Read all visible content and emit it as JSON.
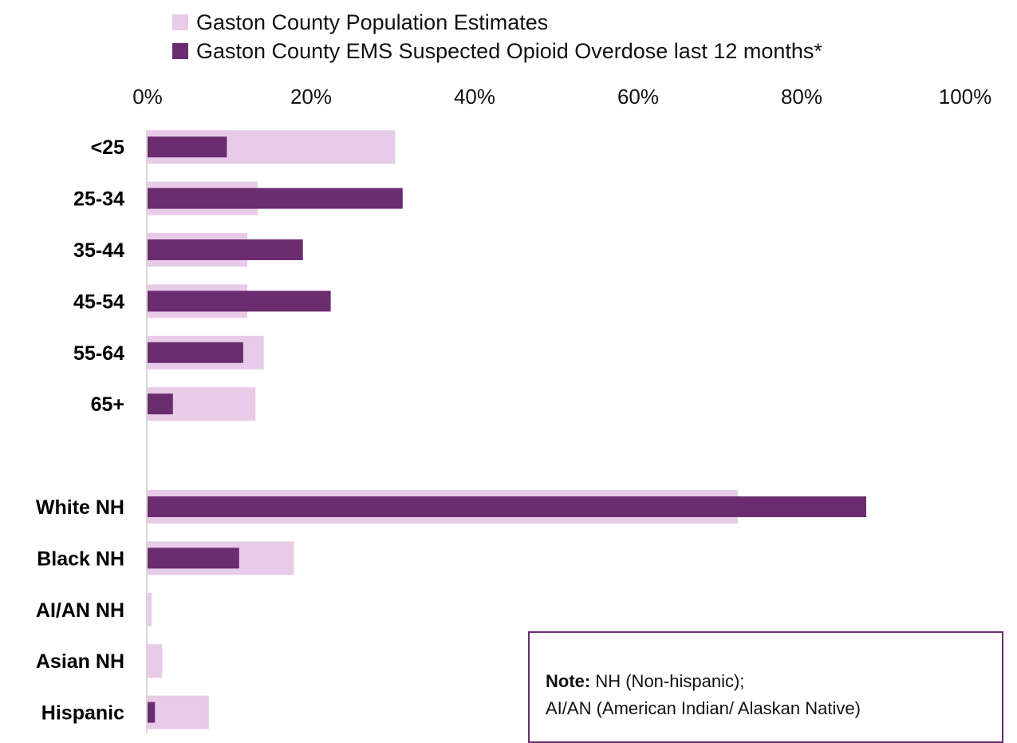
{
  "colors": {
    "population": "#e7cbe8",
    "overdose": "#6b2c70",
    "axis_line": "#d9d9d9",
    "note_border": "#6b2c70"
  },
  "legend": [
    {
      "name": "Gaston County Population Estimates",
      "color": "#e7cbe8"
    },
    {
      "name": "Gaston County EMS Suspected Opioid Overdose last 12 months*",
      "color": "#6b2c70"
    }
  ],
  "note": {
    "label": "Note:",
    "line1": "NH (Non-hispanic);",
    "line2": "AI/AN (American Indian/ Alaskan Native)"
  },
  "chart_data": {
    "type": "bar",
    "orientation": "horizontal",
    "xlim": [
      0,
      100
    ],
    "x_ticks": [
      "0%",
      "20%",
      "40%",
      "60%",
      "80%",
      "100%"
    ],
    "x_tick_values": [
      0,
      20,
      40,
      60,
      80,
      100
    ],
    "legend_placement": "top",
    "grid": false,
    "categories": [
      "<25",
      "25-34",
      "35-44",
      "45-54",
      "55-64",
      "65+",
      "",
      "White NH",
      "Black NH",
      "AI/AN NH",
      "Asian NH",
      "Hispanic"
    ],
    "series": [
      {
        "name": "Gaston County Population Estimates",
        "values": [
          30.3,
          13.5,
          12.2,
          12.2,
          14.2,
          13.2,
          null,
          72.2,
          17.9,
          0.5,
          1.8,
          7.5
        ]
      },
      {
        "name": "Gaston County EMS Suspected Opioid Overdose last 12 months*",
        "values": [
          9.7,
          31.2,
          19.0,
          22.4,
          11.7,
          3.1,
          null,
          87.9,
          11.2,
          0.0,
          0.0,
          0.9
        ]
      }
    ]
  }
}
